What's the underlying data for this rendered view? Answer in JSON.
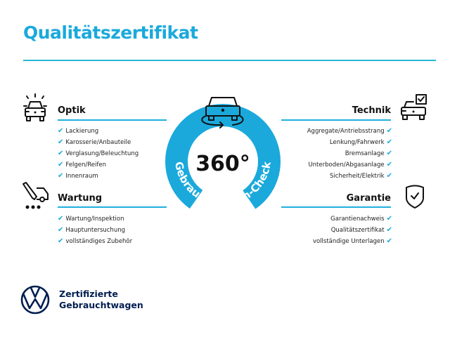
{
  "title": "Qualitätszertifikat",
  "colors": {
    "accent": "#1ba9dc",
    "rule": "#2ab5d4",
    "brand_navy": "#001e50"
  },
  "badge": {
    "value": "360°",
    "ring_text": "Gebrauchtwagen-Check",
    "icon": "car-rotate-icon"
  },
  "sections": {
    "optik": {
      "heading": "Optik",
      "icon": "car-lights-icon",
      "items": [
        "Lackierung",
        "Karosserie/Anbauteile",
        "Verglasung/Beleuchtung",
        "Felgen/Reifen",
        "Innenraum"
      ]
    },
    "wartung": {
      "heading": "Wartung",
      "icon": "service-tools-icon",
      "items": [
        "Wartung/Inspektion",
        "Hauptuntersuchung",
        "vollständiges Zubehör"
      ]
    },
    "technik": {
      "heading": "Technik",
      "icon": "car-checklist-icon",
      "items": [
        "Aggregate/Antriebsstrang",
        "Lenkung/Fahrwerk",
        "Bremsanlage",
        "Unterboden/Abgasanlage",
        "Sicherheit/Elektrik"
      ]
    },
    "garantie": {
      "heading": "Garantie",
      "icon": "shield-check-icon",
      "items": [
        "Garantienachweis",
        "Qualitätszertifikat",
        "vollständige Unterlagen"
      ]
    }
  },
  "check_mark": "✔",
  "footer": {
    "line1": "Zertifizierte",
    "line2": "Gebrauchtwagen",
    "logo": "VW"
  }
}
